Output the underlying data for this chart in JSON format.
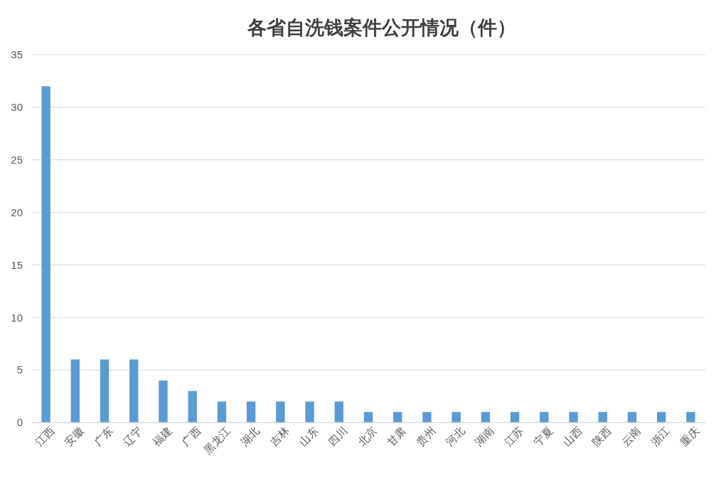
{
  "chart_data": {
    "type": "bar",
    "title": "各省自洗钱案件公开情况（件）",
    "categories": [
      "江西",
      "安徽",
      "广东",
      "辽宁",
      "福建",
      "广西",
      "黑龙江",
      "湖北",
      "吉林",
      "山东",
      "四川",
      "北京",
      "甘肃",
      "贵州",
      "河北",
      "湖南",
      "江苏",
      "宁夏",
      "山西",
      "陕西",
      "云南",
      "浙江",
      "重庆"
    ],
    "values": [
      32,
      6,
      6,
      6,
      4,
      3,
      2,
      2,
      2,
      2,
      2,
      1,
      1,
      1,
      1,
      1,
      1,
      1,
      1,
      1,
      1,
      1,
      1
    ],
    "color": "#5b9bd5",
    "ylim": [
      0,
      35
    ],
    "yticks": [
      0,
      5,
      10,
      15,
      20,
      25,
      30,
      35
    ],
    "grid": "y"
  }
}
